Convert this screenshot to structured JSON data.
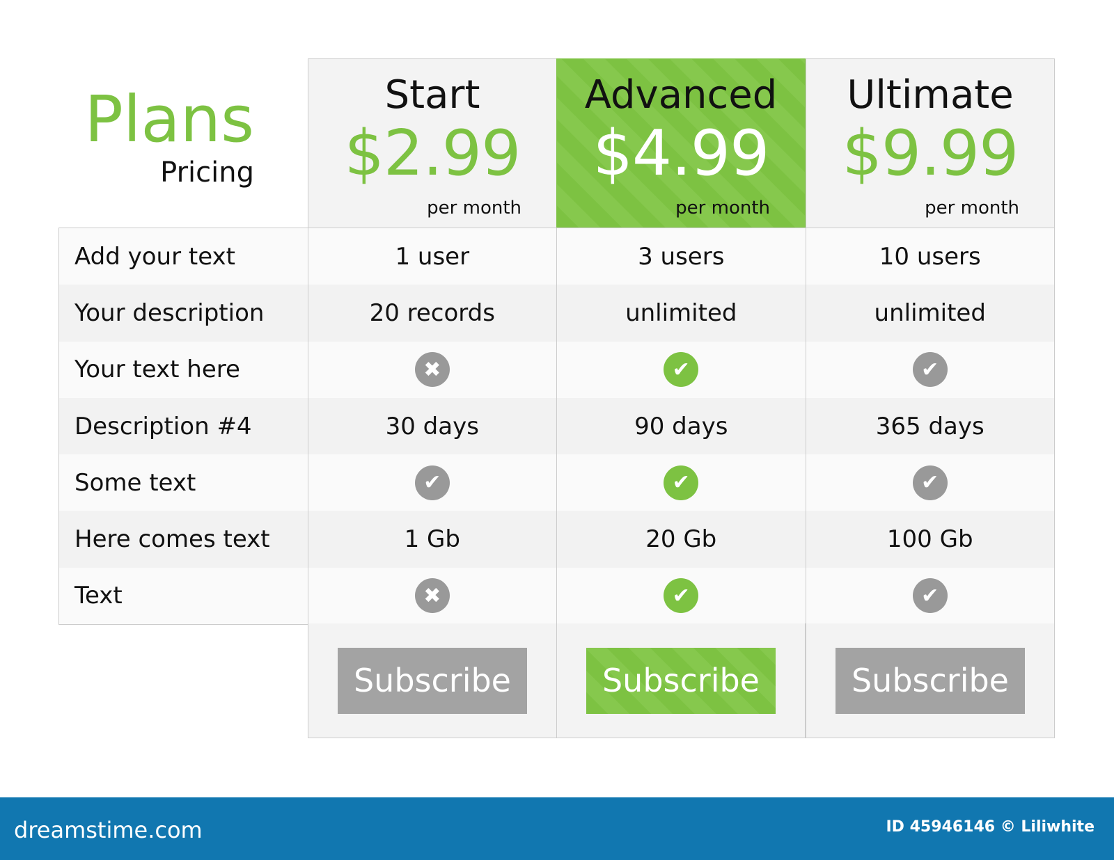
{
  "brand": {
    "title": "Plans",
    "subtitle": "Pricing"
  },
  "plans": [
    {
      "name": "Start",
      "price": "$2.99",
      "period": "per month",
      "button": "Subscribe",
      "highlighted": false
    },
    {
      "name": "Advanced",
      "price": "$4.99",
      "period": "per month",
      "button": "Subscribe",
      "highlighted": true
    },
    {
      "name": "Ultimate",
      "price": "$9.99",
      "period": "per month",
      "button": "Subscribe",
      "highlighted": false
    }
  ],
  "rows": [
    {
      "label": "Add your text",
      "values": [
        "1 user",
        "3 users",
        "10 users"
      ]
    },
    {
      "label": "Your description",
      "values": [
        "20 records",
        "unlimited",
        "unlimited"
      ]
    },
    {
      "label": "Your text here",
      "values": [
        "x-icon",
        "check-icon",
        "check-icon"
      ]
    },
    {
      "label": "Description #4",
      "values": [
        "30 days",
        "90 days",
        "365 days"
      ]
    },
    {
      "label": "Some text",
      "values": [
        "check-icon",
        "check-icon",
        "check-icon"
      ]
    },
    {
      "label": "Here comes text",
      "values": [
        "1 Gb",
        "20 Gb",
        "100 Gb"
      ]
    },
    {
      "label": "Text",
      "values": [
        "x-icon",
        "check-icon",
        "check-icon"
      ]
    }
  ],
  "colors": {
    "accent": "#7dc242",
    "neutral": "#a3a3a3",
    "footer": "#1177b0"
  },
  "footer": {
    "logo": "dreamstime.com",
    "credit": "ID 45946146 © Liliwhite"
  }
}
